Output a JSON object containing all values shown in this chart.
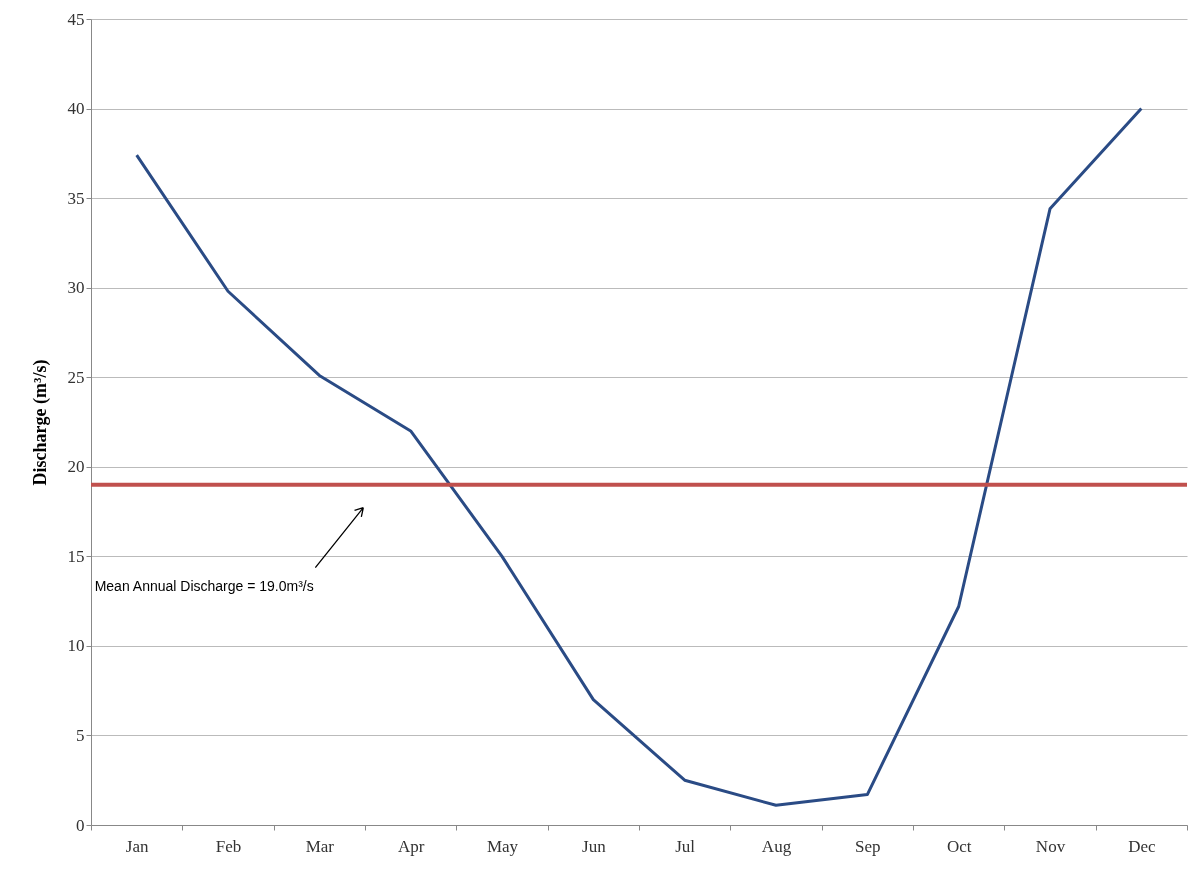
{
  "chart_data": {
    "type": "line",
    "ylabel": "Discharge (m³/s)",
    "categories": [
      "Jan",
      "Feb",
      "Mar",
      "Apr",
      "May",
      "Jun",
      "Jul",
      "Aug",
      "Sep",
      "Oct",
      "Nov",
      "Dec"
    ],
    "series": [
      {
        "color": "#2a4b85",
        "values": [
          37.4,
          29.8,
          25.1,
          22.0,
          15.0,
          7.0,
          2.5,
          1.1,
          1.7,
          12.2,
          34.4,
          40.0
        ]
      }
    ],
    "ylim": [
      0,
      45
    ],
    "yticks": [
      0,
      5,
      10,
      15,
      20,
      25,
      30,
      35,
      40,
      45
    ],
    "grid": "y",
    "ref_lines": [
      {
        "axis": "y",
        "value": 19.0,
        "color": "#c0504d"
      }
    ],
    "annotations": [
      "Mean Annual Discharge = 19.0m³/s"
    ]
  }
}
